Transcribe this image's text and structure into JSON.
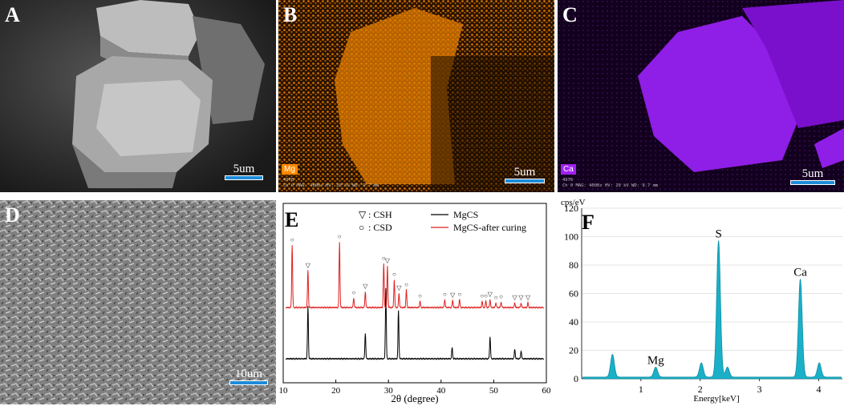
{
  "panels": {
    "A": {
      "label": "A",
      "scale": "5um"
    },
    "B": {
      "label": "B",
      "scale": "5um",
      "element": "Mg",
      "id": "4976",
      "meta": "Ch 0   MAG: 4000x   HV: 20 kV   WD: 9.7 mm",
      "color": "#ff8800"
    },
    "C": {
      "label": "C",
      "scale": "5um",
      "element": "Ca",
      "id": "4976",
      "meta": "Ch 0   MAG: 4000x   HV: 20 kV   WD: 9.7 mm",
      "color": "#a020f0"
    },
    "D": {
      "label": "D",
      "scale": "10um"
    },
    "E": {
      "label": "E"
    },
    "F": {
      "label": "F"
    }
  },
  "chart_data": [
    {
      "type": "line",
      "panel": "E",
      "xlabel": "2θ (degree)",
      "xlim": [
        10,
        60
      ],
      "xticks": [
        10,
        20,
        30,
        40,
        50,
        60
      ],
      "legend_markers": [
        {
          "symbol": "▽",
          "text": ": CSH"
        },
        {
          "symbol": "○",
          "text": ": CSD"
        }
      ],
      "series": [
        {
          "name": "MgCS",
          "color": "#000000",
          "baseline": 0,
          "peaks": [
            [
              14.7,
              0.65
            ],
            [
              25.6,
              0.32
            ],
            [
              29.5,
              0.88
            ],
            [
              31.9,
              0.6
            ],
            [
              42.1,
              0.14
            ],
            [
              49.3,
              0.28
            ],
            [
              54.0,
              0.12
            ],
            [
              55.2,
              0.1
            ]
          ]
        },
        {
          "name": "MgCS-after curing",
          "color": "#e02020",
          "baseline": 1,
          "peaks": [
            [
              11.7,
              0.78
            ],
            [
              14.7,
              0.46
            ],
            [
              20.7,
              0.82
            ],
            [
              23.4,
              0.12
            ],
            [
              25.6,
              0.2
            ],
            [
              29.1,
              0.55
            ],
            [
              29.8,
              0.52
            ],
            [
              31.1,
              0.35
            ],
            [
              32.0,
              0.18
            ],
            [
              33.4,
              0.22
            ],
            [
              36.0,
              0.08
            ],
            [
              40.7,
              0.1
            ],
            [
              42.2,
              0.09
            ],
            [
              43.5,
              0.1
            ],
            [
              47.8,
              0.08
            ],
            [
              48.5,
              0.08
            ],
            [
              49.3,
              0.1
            ],
            [
              50.4,
              0.06
            ],
            [
              51.4,
              0.07
            ],
            [
              54.0,
              0.06
            ],
            [
              55.2,
              0.06
            ],
            [
              56.5,
              0.06
            ]
          ]
        }
      ],
      "csh_markers": [
        14.7,
        25.6,
        29.8,
        32.0,
        42.2,
        49.3,
        54.0,
        55.2,
        56.5
      ],
      "csd_markers": [
        11.7,
        20.7,
        23.4,
        29.1,
        31.1,
        33.4,
        36.0,
        40.7,
        43.5,
        47.8,
        48.5,
        50.4,
        51.4
      ]
    },
    {
      "type": "area",
      "panel": "F",
      "ylabel_top": "cps/eV",
      "xlabel": "Energy[keV]",
      "xlim": [
        0,
        4.4
      ],
      "ylim": [
        0,
        120
      ],
      "xticks": [
        1,
        2,
        3,
        4
      ],
      "yticks": [
        0,
        20,
        40,
        60,
        80,
        100,
        120
      ],
      "fill_color": "#1ab0c8",
      "peaks": [
        {
          "x": 0.52,
          "y": 16,
          "label": ""
        },
        {
          "x": 1.25,
          "y": 7,
          "label": "Mg"
        },
        {
          "x": 2.02,
          "y": 10,
          "label": ""
        },
        {
          "x": 2.31,
          "y": 96,
          "label": "S"
        },
        {
          "x": 2.46,
          "y": 7,
          "label": ""
        },
        {
          "x": 3.69,
          "y": 69,
          "label": "Ca"
        },
        {
          "x": 4.01,
          "y": 10,
          "label": ""
        }
      ]
    }
  ]
}
